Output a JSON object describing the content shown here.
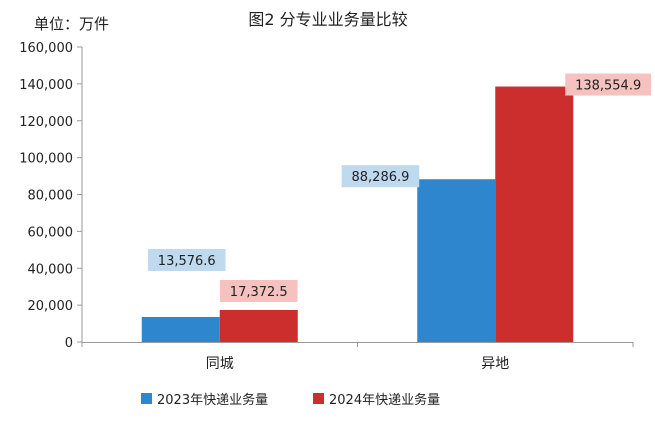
{
  "chart_data": {
    "type": "bar",
    "title": "图2 分专业业务量比较",
    "unit_label": "单位：万件",
    "categories": [
      "同城",
      "异地"
    ],
    "series": [
      {
        "name": "2023年快递业务量",
        "color": "#2E86CF",
        "label_bg": "#BFD9EF",
        "values": [
          13576.6,
          88286.9
        ],
        "labels": [
          "13,576.6",
          "88,286.9"
        ]
      },
      {
        "name": "2024年快递业务量",
        "color": "#CC2E2E",
        "label_bg": "#F5C2C0",
        "values": [
          17372.5,
          138554.9
        ],
        "labels": [
          "17,372.5",
          "138,554.9"
        ]
      }
    ],
    "ylim": [
      0,
      160000
    ],
    "yticks": [
      "0",
      "20,000",
      "40,000",
      "60,000",
      "80,000",
      "100,000",
      "120,000",
      "140,000",
      "160,000"
    ],
    "grid": false,
    "legend_position": "bottom"
  }
}
